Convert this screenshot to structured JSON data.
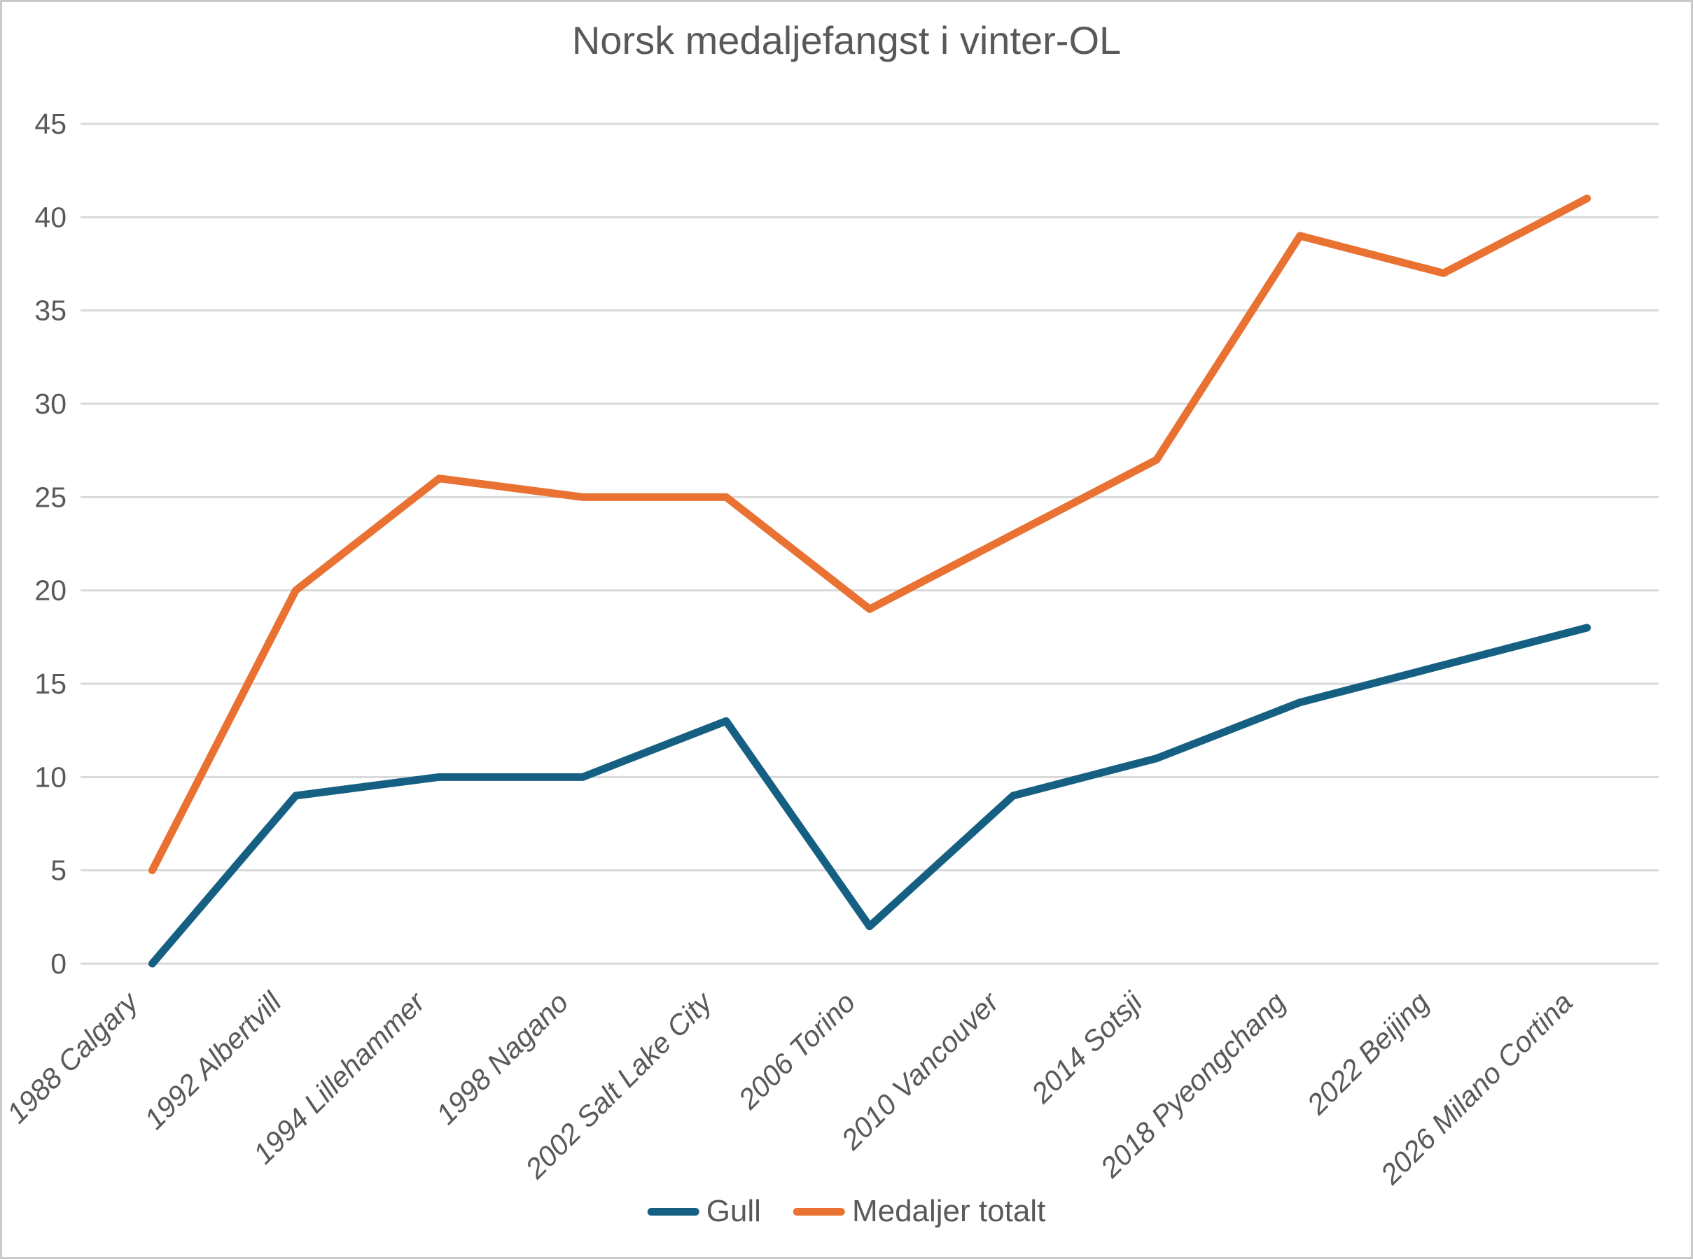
{
  "chart_data": {
    "type": "line",
    "title": "Norsk medaljefangst i vinter-OL",
    "categories": [
      "1988 Calgary",
      "1992 Albertvill",
      "1994 Lillehammer",
      "1998 Nagano",
      "2002 Salt Lake City",
      "2006 Torino",
      "2010 Vancouver",
      "2014 Sotsji",
      "2018 Pyeongchang",
      "2022 Beijing",
      "2026 Milano Cortina"
    ],
    "series": [
      {
        "name": "Gull",
        "color": "#156082",
        "values": [
          0,
          9,
          10,
          10,
          13,
          2,
          9,
          11,
          14,
          16,
          18
        ]
      },
      {
        "name": "Medaljer totalt",
        "color": "#E97132",
        "values": [
          5,
          20,
          26,
          25,
          25,
          19,
          23,
          27,
          39,
          37,
          41
        ]
      }
    ],
    "ylim": [
      0,
      45
    ],
    "ytick_step": 5,
    "xlabel": "",
    "ylabel": "",
    "grid": true,
    "legend_position": "bottom",
    "axis_text_color": "#595959",
    "gridline_color": "#D9D9D9"
  }
}
